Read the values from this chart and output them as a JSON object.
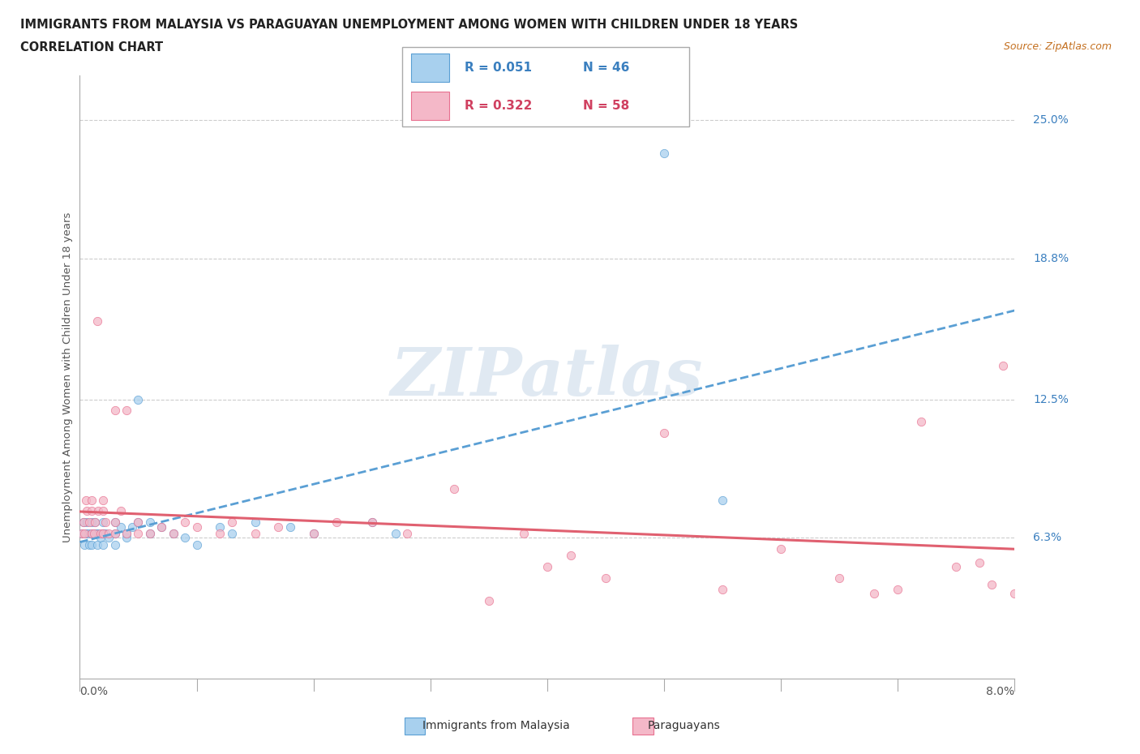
{
  "title_line1": "IMMIGRANTS FROM MALAYSIA VS PARAGUAYAN UNEMPLOYMENT AMONG WOMEN WITH CHILDREN UNDER 18 YEARS",
  "title_line2": "CORRELATION CHART",
  "source": "Source: ZipAtlas.com",
  "ylabel": "Unemployment Among Women with Children Under 18 years",
  "ytick_labels": [
    "25.0%",
    "18.8%",
    "12.5%",
    "6.3%"
  ],
  "ytick_values": [
    0.25,
    0.188,
    0.125,
    0.063
  ],
  "xmin": 0.0,
  "xmax": 0.08,
  "ymin": 0.0,
  "ymax": 0.27,
  "legend_r1": "R = 0.051",
  "legend_n1": "N = 46",
  "legend_r2": "R = 0.322",
  "legend_n2": "N = 58",
  "color_blue": "#a8d0ee",
  "color_pink": "#f4b8c8",
  "color_blue_edge": "#5a9fd4",
  "color_pink_edge": "#e87090",
  "color_blue_line": "#5a9fd4",
  "color_pink_line": "#e06070",
  "color_blue_text": "#3a7fbf",
  "color_pink_text": "#d04060",
  "watermark_color": "#d0dce8",
  "malaysia_x": [
    0.0002,
    0.0003,
    0.0004,
    0.0005,
    0.0006,
    0.0007,
    0.0008,
    0.001,
    0.001,
    0.001,
    0.0012,
    0.0013,
    0.0014,
    0.0015,
    0.0016,
    0.0018,
    0.002,
    0.002,
    0.002,
    0.002,
    0.0022,
    0.0025,
    0.003,
    0.003,
    0.003,
    0.0035,
    0.004,
    0.004,
    0.0045,
    0.005,
    0.005,
    0.006,
    0.006,
    0.007,
    0.008,
    0.009,
    0.01,
    0.012,
    0.013,
    0.015,
    0.018,
    0.02,
    0.025,
    0.027,
    0.05,
    0.055
  ],
  "malaysia_y": [
    0.065,
    0.07,
    0.06,
    0.065,
    0.07,
    0.065,
    0.06,
    0.07,
    0.065,
    0.06,
    0.065,
    0.07,
    0.065,
    0.06,
    0.065,
    0.063,
    0.065,
    0.07,
    0.065,
    0.06,
    0.065,
    0.063,
    0.065,
    0.07,
    0.06,
    0.068,
    0.063,
    0.065,
    0.068,
    0.07,
    0.125,
    0.065,
    0.07,
    0.068,
    0.065,
    0.063,
    0.06,
    0.068,
    0.065,
    0.07,
    0.068,
    0.065,
    0.07,
    0.065,
    0.235,
    0.08
  ],
  "paraguay_x": [
    0.0002,
    0.0003,
    0.0004,
    0.0005,
    0.0006,
    0.0008,
    0.001,
    0.001,
    0.001,
    0.0012,
    0.0013,
    0.0015,
    0.0016,
    0.0018,
    0.002,
    0.002,
    0.002,
    0.0022,
    0.0025,
    0.003,
    0.003,
    0.003,
    0.0035,
    0.004,
    0.004,
    0.005,
    0.005,
    0.006,
    0.007,
    0.008,
    0.009,
    0.01,
    0.012,
    0.013,
    0.015,
    0.017,
    0.02,
    0.022,
    0.025,
    0.028,
    0.032,
    0.035,
    0.038,
    0.04,
    0.042,
    0.045,
    0.05,
    0.055,
    0.06,
    0.065,
    0.068,
    0.07,
    0.072,
    0.075,
    0.077,
    0.078,
    0.079,
    0.08
  ],
  "paraguay_y": [
    0.065,
    0.07,
    0.065,
    0.08,
    0.075,
    0.07,
    0.065,
    0.075,
    0.08,
    0.065,
    0.07,
    0.16,
    0.075,
    0.065,
    0.075,
    0.065,
    0.08,
    0.07,
    0.065,
    0.12,
    0.07,
    0.065,
    0.075,
    0.065,
    0.12,
    0.065,
    0.07,
    0.065,
    0.068,
    0.065,
    0.07,
    0.068,
    0.065,
    0.07,
    0.065,
    0.068,
    0.065,
    0.07,
    0.07,
    0.065,
    0.085,
    0.035,
    0.065,
    0.05,
    0.055,
    0.045,
    0.11,
    0.04,
    0.058,
    0.045,
    0.038,
    0.04,
    0.115,
    0.05,
    0.052,
    0.042,
    0.14,
    0.038
  ]
}
